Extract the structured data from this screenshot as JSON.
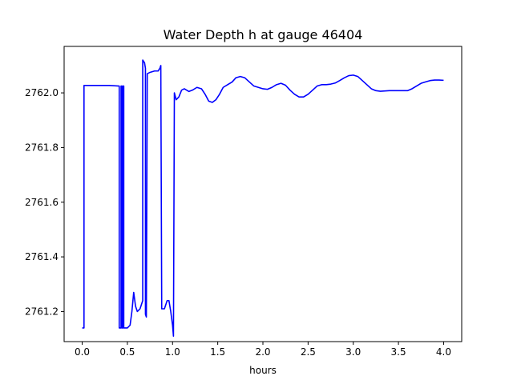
{
  "chart_data": {
    "type": "line",
    "title": "Water Depth h at gauge 46404",
    "xlabel": "hours",
    "ylabel": "",
    "xlim": [
      -0.2,
      4.2
    ],
    "ylim": [
      2761.09,
      2762.17
    ],
    "xticks": [
      0.0,
      0.5,
      1.0,
      1.5,
      2.0,
      2.5,
      3.0,
      3.5,
      4.0
    ],
    "xtick_labels": [
      "0.0",
      "0.5",
      "1.0",
      "1.5",
      "2.0",
      "2.5",
      "3.0",
      "3.5",
      "4.0"
    ],
    "yticks": [
      2761.2,
      2761.4,
      2761.6,
      2761.8,
      2762.0
    ],
    "ytick_labels": [
      "2761.2",
      "2761.4",
      "2761.6",
      "2761.8",
      "2762.0"
    ],
    "grid": false,
    "series": [
      {
        "name": "",
        "color": "#0000ff",
        "points": [
          [
            0.0,
            2761.14
          ],
          [
            0.02,
            2761.14
          ],
          [
            0.02,
            2762.027
          ],
          [
            0.15,
            2762.027
          ],
          [
            0.3,
            2762.027
          ],
          [
            0.41,
            2762.025
          ],
          [
            0.41,
            2761.14
          ],
          [
            0.43,
            2761.14
          ],
          [
            0.43,
            2762.025
          ],
          [
            0.44,
            2762.025
          ],
          [
            0.44,
            2761.14
          ],
          [
            0.45,
            2761.14
          ],
          [
            0.45,
            2762.025
          ],
          [
            0.46,
            2762.025
          ],
          [
            0.46,
            2761.14
          ],
          [
            0.5,
            2761.14
          ],
          [
            0.53,
            2761.15
          ],
          [
            0.55,
            2761.2
          ],
          [
            0.57,
            2761.27
          ],
          [
            0.59,
            2761.22
          ],
          [
            0.61,
            2761.2
          ],
          [
            0.64,
            2761.21
          ],
          [
            0.66,
            2761.23
          ],
          [
            0.67,
            2761.24
          ],
          [
            0.67,
            2762.12
          ],
          [
            0.69,
            2762.11
          ],
          [
            0.7,
            2762.09
          ],
          [
            0.7,
            2761.19
          ],
          [
            0.71,
            2761.18
          ],
          [
            0.72,
            2762.07
          ],
          [
            0.75,
            2762.075
          ],
          [
            0.8,
            2762.08
          ],
          [
            0.84,
            2762.08
          ],
          [
            0.86,
            2762.09
          ],
          [
            0.87,
            2762.1
          ],
          [
            0.88,
            2761.21
          ],
          [
            0.91,
            2761.21
          ],
          [
            0.94,
            2761.24
          ],
          [
            0.96,
            2761.24
          ],
          [
            0.98,
            2761.2
          ],
          [
            1.0,
            2761.15
          ],
          [
            1.01,
            2761.11
          ],
          [
            1.02,
            2762.0
          ],
          [
            1.04,
            2761.975
          ],
          [
            1.07,
            2761.985
          ],
          [
            1.1,
            2762.01
          ],
          [
            1.13,
            2762.015
          ],
          [
            1.18,
            2762.005
          ],
          [
            1.22,
            2762.01
          ],
          [
            1.27,
            2762.02
          ],
          [
            1.32,
            2762.015
          ],
          [
            1.36,
            2761.995
          ],
          [
            1.4,
            2761.97
          ],
          [
            1.44,
            2761.965
          ],
          [
            1.48,
            2761.975
          ],
          [
            1.52,
            2761.995
          ],
          [
            1.56,
            2762.02
          ],
          [
            1.61,
            2762.03
          ],
          [
            1.66,
            2762.04
          ],
          [
            1.7,
            2762.055
          ],
          [
            1.75,
            2762.06
          ],
          [
            1.8,
            2762.055
          ],
          [
            1.85,
            2762.04
          ],
          [
            1.9,
            2762.025
          ],
          [
            1.95,
            2762.02
          ],
          [
            2.0,
            2762.015
          ],
          [
            2.05,
            2762.013
          ],
          [
            2.1,
            2762.02
          ],
          [
            2.15,
            2762.03
          ],
          [
            2.2,
            2762.035
          ],
          [
            2.25,
            2762.028
          ],
          [
            2.3,
            2762.01
          ],
          [
            2.35,
            2761.995
          ],
          [
            2.4,
            2761.985
          ],
          [
            2.45,
            2761.985
          ],
          [
            2.5,
            2761.995
          ],
          [
            2.55,
            2762.01
          ],
          [
            2.6,
            2762.025
          ],
          [
            2.65,
            2762.03
          ],
          [
            2.7,
            2762.03
          ],
          [
            2.75,
            2762.032
          ],
          [
            2.8,
            2762.036
          ],
          [
            2.85,
            2762.045
          ],
          [
            2.9,
            2762.055
          ],
          [
            2.95,
            2762.063
          ],
          [
            3.0,
            2762.065
          ],
          [
            3.05,
            2762.06
          ],
          [
            3.1,
            2762.045
          ],
          [
            3.15,
            2762.03
          ],
          [
            3.2,
            2762.015
          ],
          [
            3.25,
            2762.008
          ],
          [
            3.3,
            2762.006
          ],
          [
            3.4,
            2762.008
          ],
          [
            3.5,
            2762.008
          ],
          [
            3.6,
            2762.008
          ],
          [
            3.65,
            2762.015
          ],
          [
            3.7,
            2762.025
          ],
          [
            3.75,
            2762.035
          ],
          [
            3.8,
            2762.04
          ],
          [
            3.85,
            2762.045
          ],
          [
            3.9,
            2762.047
          ],
          [
            3.95,
            2762.047
          ],
          [
            4.0,
            2762.046
          ]
        ]
      }
    ]
  }
}
